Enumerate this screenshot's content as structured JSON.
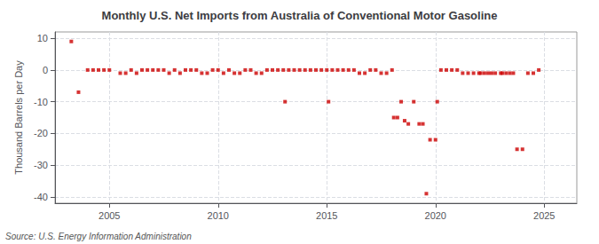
{
  "chart_data": {
    "type": "scatter",
    "title": "Monthly U.S. Net Imports from Australia of Conventional Motor Gasoline",
    "ylabel": "Thousand Barrels per Day",
    "source": "Source: U.S. Energy Information Administration",
    "color": "#cc0000",
    "marker": "square",
    "grid": true,
    "xlim": [
      2002.5,
      2026.5
    ],
    "ylim": [
      -42,
      12
    ],
    "xticks": [
      2005,
      2010,
      2015,
      2020,
      2025
    ],
    "yticks": [
      -40,
      -30,
      -20,
      -10,
      0,
      10
    ],
    "x": [
      2003.25,
      2003.58,
      2004.0,
      2004.25,
      2004.5,
      2004.75,
      2005.0,
      2005.5,
      2005.75,
      2006.0,
      2006.25,
      2006.5,
      2006.75,
      2007.0,
      2007.25,
      2007.5,
      2007.75,
      2008.0,
      2008.25,
      2008.5,
      2008.75,
      2009.0,
      2009.25,
      2009.5,
      2009.75,
      2010.0,
      2010.25,
      2010.5,
      2010.75,
      2011.0,
      2011.25,
      2011.5,
      2011.75,
      2012.0,
      2012.25,
      2012.5,
      2012.75,
      2013.0,
      2013.08,
      2013.25,
      2013.5,
      2013.75,
      2014.0,
      2014.25,
      2014.5,
      2014.75,
      2015.0,
      2015.08,
      2015.25,
      2015.5,
      2015.75,
      2016.0,
      2016.25,
      2016.5,
      2016.75,
      2017.0,
      2017.25,
      2017.5,
      2017.75,
      2018.0,
      2018.08,
      2018.25,
      2018.42,
      2018.58,
      2018.75,
      2019.0,
      2019.25,
      2019.42,
      2019.58,
      2019.75,
      2020.0,
      2020.08,
      2020.25,
      2020.5,
      2020.75,
      2021.0,
      2021.25,
      2021.5,
      2021.75,
      2022.0,
      2022.08,
      2022.25,
      2022.42,
      2022.58,
      2022.75,
      2023.0,
      2023.08,
      2023.25,
      2023.42,
      2023.58,
      2023.75,
      2024.0,
      2024.25,
      2024.5,
      2024.75
    ],
    "values": [
      9.0,
      -7.0,
      0.0,
      0.0,
      0.0,
      0.0,
      0.0,
      -1.0,
      -1.0,
      0.0,
      -1.0,
      0.0,
      0.0,
      0.0,
      0.0,
      0.0,
      -1.0,
      0.0,
      -1.0,
      0.0,
      0.0,
      0.0,
      -1.0,
      -1.0,
      0.0,
      0.0,
      -1.0,
      0.0,
      -1.0,
      -1.0,
      0.0,
      0.0,
      -1.0,
      -1.0,
      0.0,
      0.0,
      0.0,
      0.0,
      -10.0,
      0.0,
      0.0,
      0.0,
      0.0,
      0.0,
      0.0,
      0.0,
      0.0,
      -10.0,
      0.0,
      0.0,
      0.0,
      0.0,
      0.0,
      -1.0,
      -1.0,
      0.0,
      0.0,
      -1.0,
      -1.0,
      0.0,
      -15.0,
      -15.0,
      -10.0,
      -16.0,
      -17.0,
      -10.0,
      -17.0,
      -17.0,
      -39.0,
      -22.0,
      -22.0,
      -10.0,
      0.0,
      0.0,
      0.0,
      0.0,
      -1.0,
      -1.0,
      -1.0,
      -1.0,
      -1.0,
      -1.0,
      -1.0,
      -1.0,
      -1.0,
      -1.0,
      -1.0,
      -1.0,
      -1.0,
      -1.0,
      -25.0,
      -25.0,
      -1.0,
      -1.0,
      0.0
    ]
  }
}
